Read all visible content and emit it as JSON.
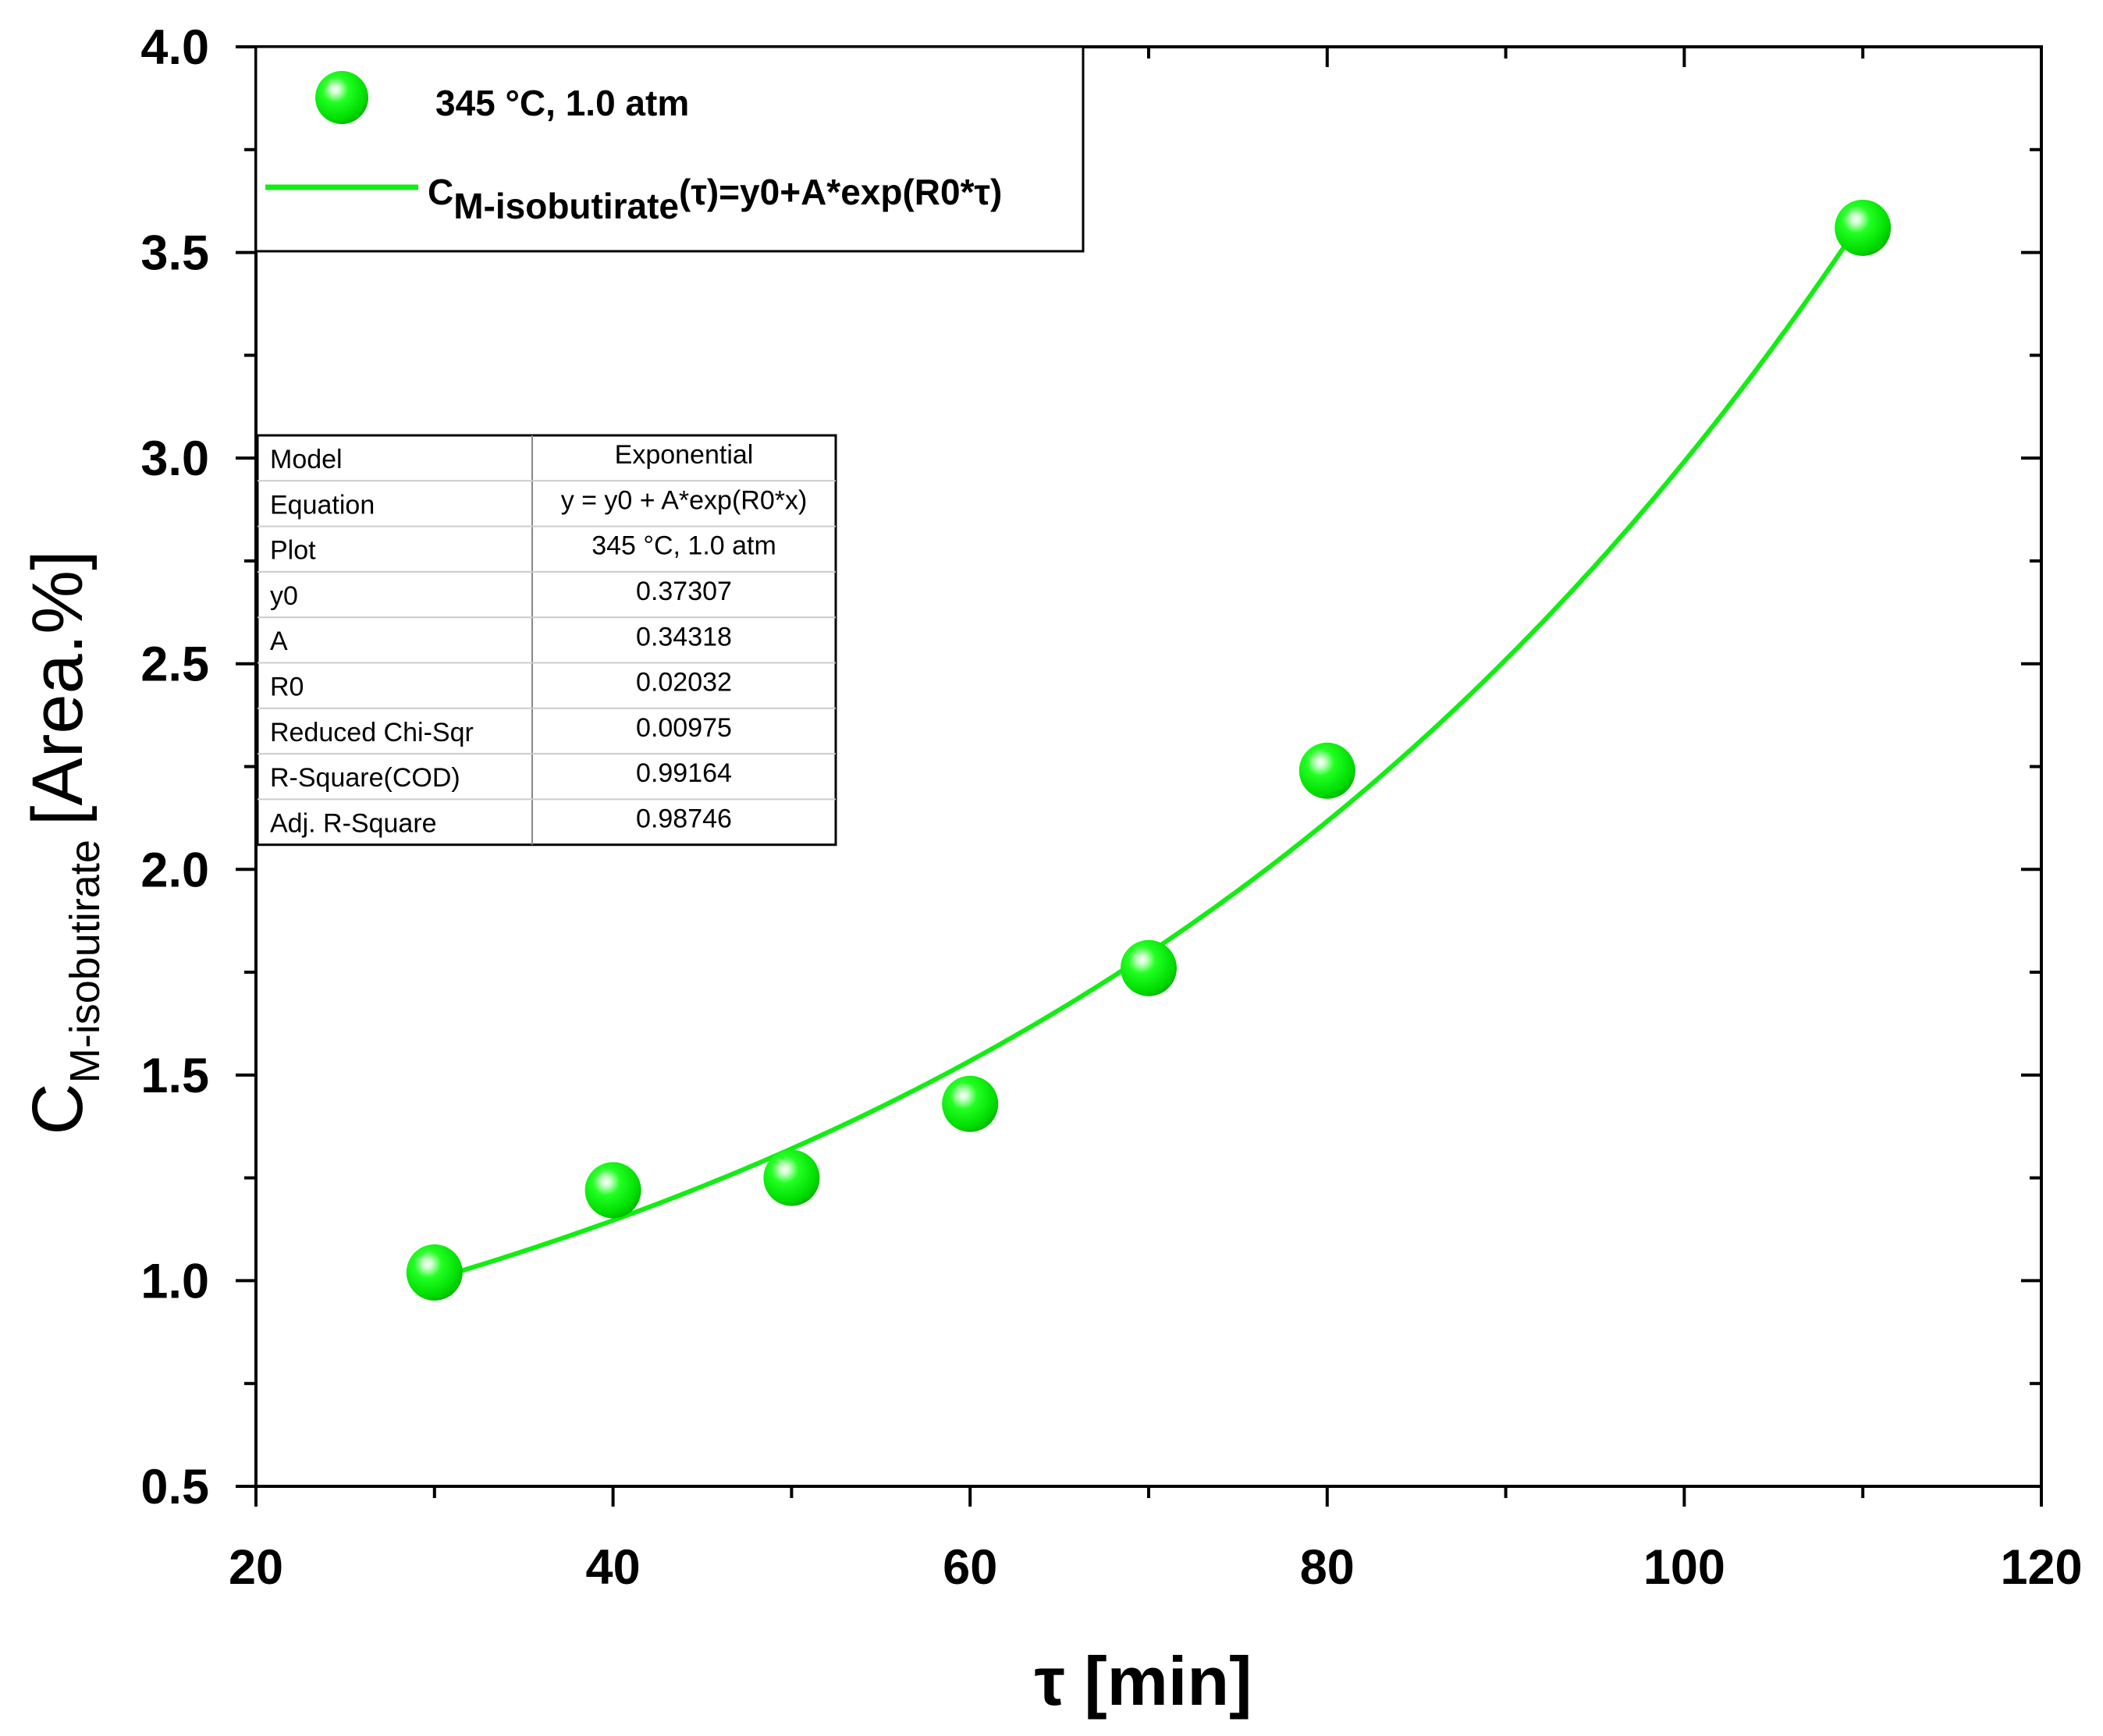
{
  "chart_data": {
    "type": "scatter",
    "xlabel": "τ [min]",
    "ylabel": {
      "main": "C",
      "sub": "M-isobutirate",
      "unit": "[Area.%]"
    },
    "xlim": [
      20,
      120
    ],
    "ylim": [
      0.5,
      4.0
    ],
    "x_ticks": [
      20,
      40,
      60,
      80,
      100,
      120
    ],
    "x_tick_labels": [
      "20",
      "40",
      "60",
      "80",
      "100",
      "120"
    ],
    "y_ticks": [
      0.5,
      1.0,
      1.5,
      2.0,
      2.5,
      3.0,
      3.5,
      4.0
    ],
    "y_tick_labels": [
      "0.5",
      "1.0",
      "1.5",
      "2.0",
      "2.5",
      "3.0",
      "3.5",
      "4.0"
    ],
    "grid": false,
    "legend_position": "top-left",
    "series": [
      {
        "name": "345 °C, 1.0 atm",
        "kind": "points",
        "color": "#00ee00",
        "x": [
          30,
          40,
          50,
          60,
          70,
          80,
          110
        ],
        "y": [
          1.02,
          1.22,
          1.25,
          1.43,
          1.76,
          2.24,
          3.56
        ]
      },
      {
        "name": "fit",
        "kind": "line",
        "color": "#11ee11",
        "legend_label": {
          "prefix": "C",
          "sub": "M-isobutirate",
          "suffix": "(τ)=y0+A*exp(R0*τ)"
        },
        "fit": {
          "y0": 0.37307,
          "A": 0.34318,
          "R0": 0.02032,
          "x_range": [
            30,
            110
          ]
        }
      }
    ],
    "fit_table": [
      {
        "label": "Model",
        "value": "Exponential"
      },
      {
        "label": "Equation",
        "value": "y = y0 + A*exp(R0*x)"
      },
      {
        "label": "Plot",
        "value": "345 °C, 1.0 atm"
      },
      {
        "label": "y0",
        "value": "0.37307"
      },
      {
        "label": "A",
        "value": "0.34318"
      },
      {
        "label": "R0",
        "value": "0.02032"
      },
      {
        "label": "Reduced Chi-Sqr",
        "value": "0.00975"
      },
      {
        "label": "R-Square(COD)",
        "value": "0.99164"
      },
      {
        "label": "Adj. R-Square",
        "value": "0.98746"
      }
    ]
  }
}
